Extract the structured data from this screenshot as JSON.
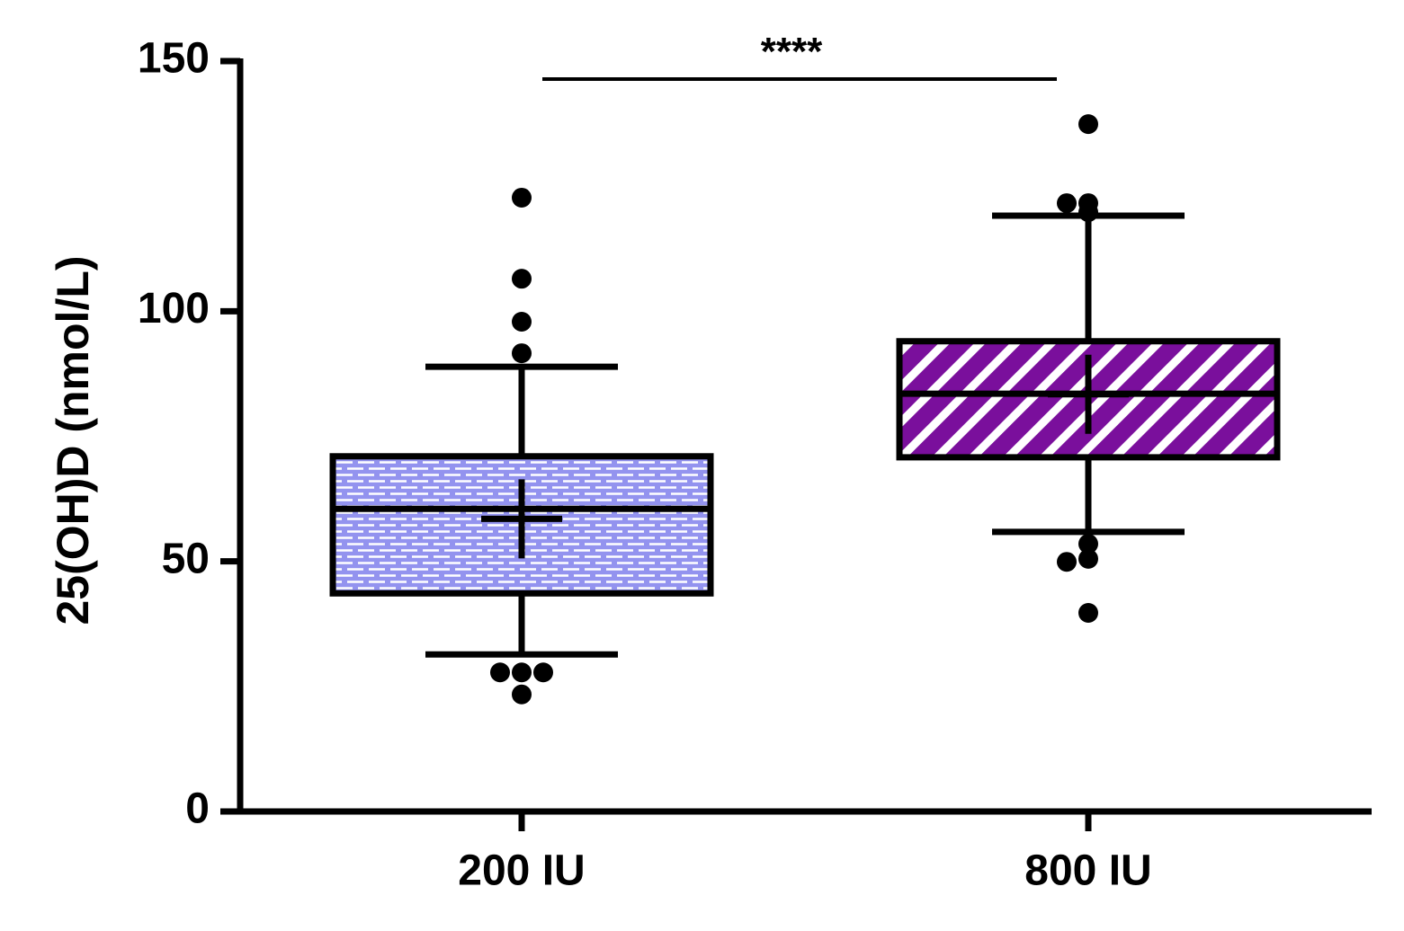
{
  "chart_data": {
    "type": "box",
    "y_label": "25(OH)D (nmol/L)",
    "categories": [
      "200 IU",
      "800 IU"
    ],
    "boxes": [
      {
        "whisker_low": 31.4,
        "q1": 43.6,
        "median": 60.5,
        "q3": 71,
        "whisker_high": 88.9,
        "mean": 58.5,
        "outliers": [
          122.7,
          106.5,
          97.9,
          91.6,
          27.8,
          27.8,
          27.8,
          23.4
        ]
      },
      {
        "whisker_low": 55.9,
        "q1": 70.8,
        "median": 83.5,
        "q3": 94,
        "whisker_high": 119.1,
        "mean": 83.4,
        "outliers": [
          137.4,
          121.6,
          121.6,
          119.8,
          53.5,
          50.5,
          49.9,
          39.7
        ]
      }
    ],
    "colors": [
      "#9393ef",
      "#7a0f9c"
    ],
    "hatch": [
      "bricks",
      "stripes"
    ],
    "significance": "****",
    "ylim": [
      0,
      150
    ],
    "yticks": [
      0,
      50,
      100,
      150
    ]
  }
}
